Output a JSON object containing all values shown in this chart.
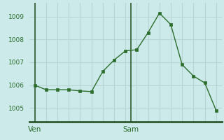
{
  "x": [
    0,
    1,
    2,
    3,
    4,
    5,
    6,
    7,
    8,
    9,
    10,
    11,
    12,
    13,
    14,
    15,
    16
  ],
  "y": [
    1006.0,
    1005.8,
    1005.8,
    1005.8,
    1005.75,
    1005.72,
    1006.6,
    1007.1,
    1007.5,
    1007.55,
    1008.3,
    1009.15,
    1008.65,
    1006.9,
    1006.4,
    1006.1,
    1004.9
  ],
  "ven_tick_x": 0.0,
  "sam_tick_x": 8.5,
  "ven_line_x": 0.0,
  "sam_line_x": 8.5,
  "ylabel_values": [
    1005,
    1006,
    1007,
    1008,
    1009
  ],
  "ylim": [
    1004.4,
    1009.6
  ],
  "xlim": [
    -0.5,
    16.5
  ],
  "background_color": "#cceaea",
  "grid_color": "#b8d4d4",
  "line_color": "#2d6e2d",
  "marker_color": "#2d6e2d",
  "axis_color": "#2d5a2d",
  "tick_label_color": "#2d6e2d"
}
